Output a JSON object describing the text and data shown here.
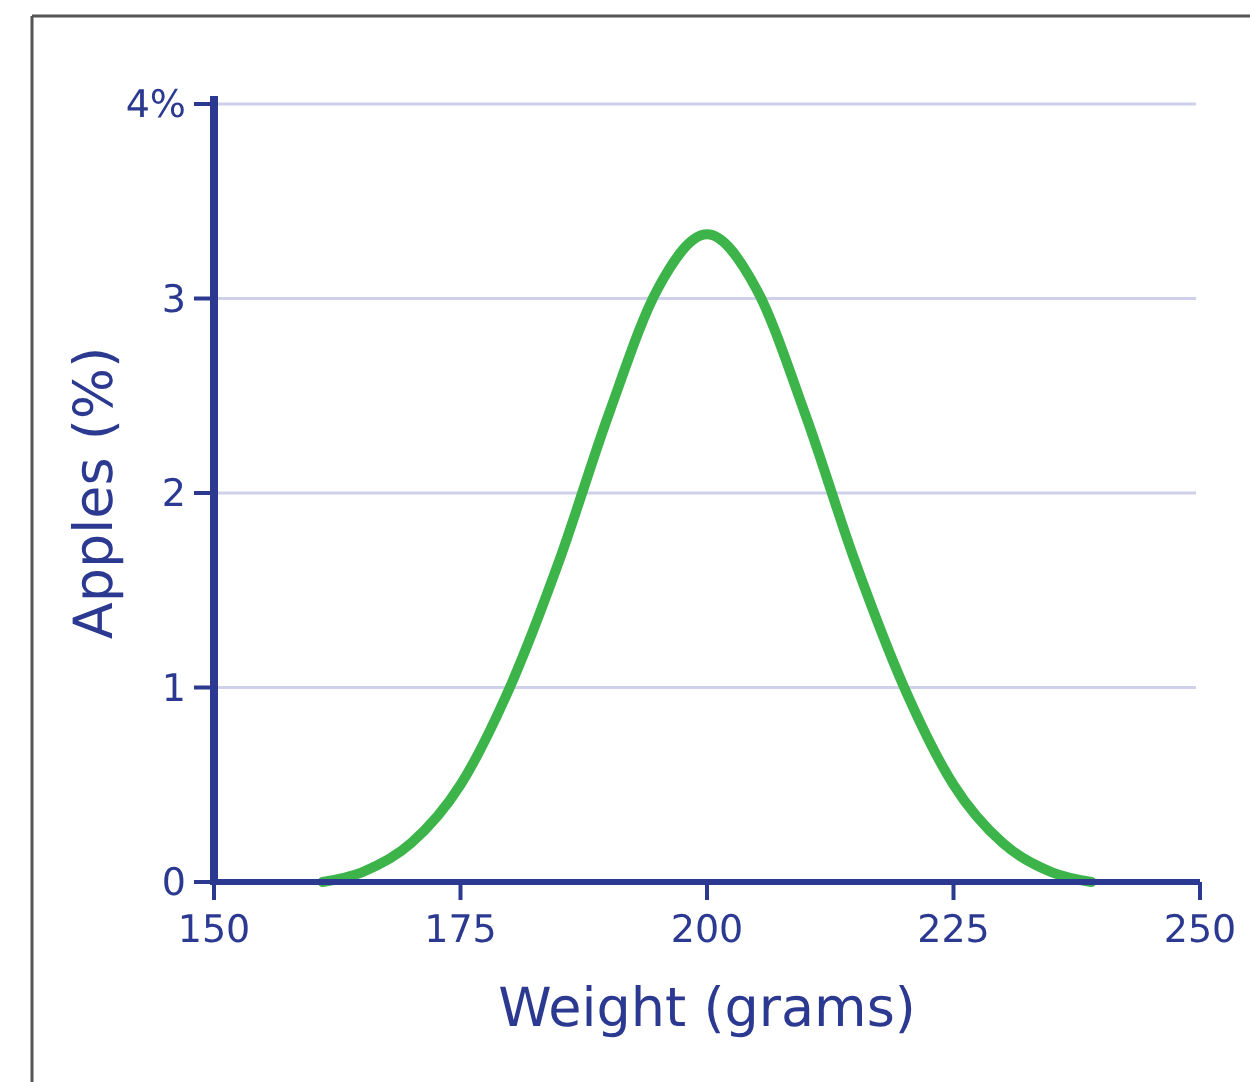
{
  "chart_data": {
    "type": "line",
    "xlabel": "Weight (grams)",
    "ylabel": "Apples (%)",
    "x": [
      161,
      165,
      170,
      175,
      180,
      185,
      190,
      195,
      200,
      205,
      210,
      215,
      220,
      225,
      230,
      235,
      239
    ],
    "series": [
      {
        "color": "#3cb44a",
        "values": [
          0,
          0.05,
          0.2,
          0.5,
          1.0,
          1.65,
          2.4,
          3.05,
          3.33,
          3.05,
          2.4,
          1.65,
          1.0,
          0.5,
          0.2,
          0.05,
          0
        ]
      }
    ],
    "xlim": [
      150,
      250
    ],
    "xticks": [
      150,
      175,
      200,
      225,
      250
    ],
    "ylim": [
      0,
      4
    ],
    "yticks": [
      0,
      1,
      2,
      3,
      {
        "value": 4,
        "label": "4%"
      }
    ],
    "grid": "y",
    "marker": "none",
    "line_style": "solid"
  }
}
